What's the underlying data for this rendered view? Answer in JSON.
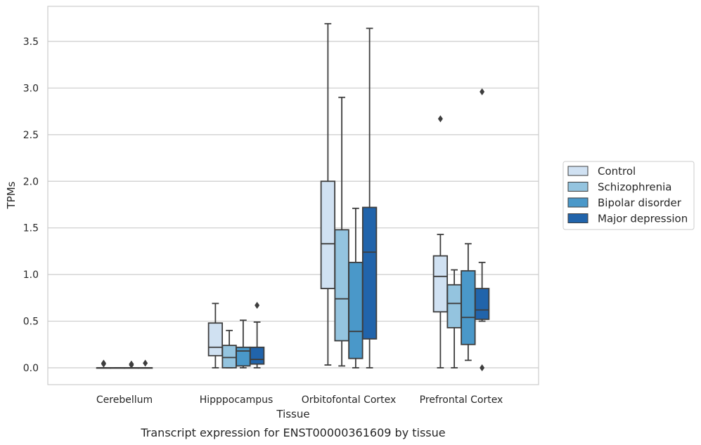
{
  "chart_data": {
    "type": "box",
    "xlabel": "Tissue",
    "ylabel": "TPMs",
    "caption": "Transcript expression for ENST00000361609 by tissue",
    "ylim": [
      -0.18,
      3.88
    ],
    "yticks": [
      "0.0",
      "0.5",
      "1.0",
      "1.5",
      "2.0",
      "2.5",
      "3.0",
      "3.5"
    ],
    "ytick_values": [
      0,
      0.5,
      1.0,
      1.5,
      2.0,
      2.5,
      3.0,
      3.5
    ],
    "grid": true,
    "legend_position": "right",
    "categories": [
      "Cerebellum",
      "Hipppocampus",
      "Orbitofontal Cortex",
      "Prefrontal Cortex"
    ],
    "series": [
      {
        "name": "Control",
        "color": "#d0e1f2",
        "boxes": [
          {
            "min": 0,
            "q1": 0,
            "median": 0,
            "q3": 0,
            "max": 0,
            "outliers": [
              0.05,
              0.04
            ]
          },
          {
            "min": 0,
            "q1": 0.13,
            "median": 0.22,
            "q3": 0.48,
            "max": 0.69,
            "outliers": []
          },
          {
            "min": 0.03,
            "q1": 0.85,
            "median": 1.33,
            "q3": 2.0,
            "max": 3.69,
            "outliers": []
          },
          {
            "min": 0,
            "q1": 0.6,
            "median": 0.98,
            "q3": 1.2,
            "max": 1.43,
            "outliers": [
              2.67
            ]
          }
        ]
      },
      {
        "name": "Schizophrenia",
        "color": "#94c4df",
        "boxes": [
          {
            "min": 0,
            "q1": 0,
            "median": 0,
            "q3": 0,
            "max": 0,
            "outliers": []
          },
          {
            "min": 0,
            "q1": 0,
            "median": 0.11,
            "q3": 0.24,
            "max": 0.4,
            "outliers": []
          },
          {
            "min": 0.02,
            "q1": 0.29,
            "median": 0.74,
            "q3": 1.48,
            "max": 2.9,
            "outliers": []
          },
          {
            "min": 0,
            "q1": 0.43,
            "median": 0.69,
            "q3": 0.89,
            "max": 1.05,
            "outliers": []
          }
        ]
      },
      {
        "name": "Bipolar disorder",
        "color": "#4a98c9",
        "boxes": [
          {
            "min": 0,
            "q1": 0,
            "median": 0,
            "q3": 0,
            "max": 0,
            "outliers": [
              0.04,
              0.03
            ]
          },
          {
            "min": 0,
            "q1": 0.02,
            "median": 0.18,
            "q3": 0.22,
            "max": 0.51,
            "outliers": []
          },
          {
            "min": 0,
            "q1": 0.1,
            "median": 0.39,
            "q3": 1.13,
            "max": 1.71,
            "outliers": []
          },
          {
            "min": 0.08,
            "q1": 0.25,
            "median": 0.54,
            "q3": 1.04,
            "max": 1.33,
            "outliers": []
          }
        ]
      },
      {
        "name": "Major depression",
        "color": "#2164ab",
        "boxes": [
          {
            "min": 0,
            "q1": 0,
            "median": 0,
            "q3": 0,
            "max": 0,
            "outliers": [
              0.05
            ]
          },
          {
            "min": 0,
            "q1": 0.04,
            "median": 0.09,
            "q3": 0.22,
            "max": 0.49,
            "outliers": [
              0.67
            ]
          },
          {
            "min": 0,
            "q1": 0.31,
            "median": 1.24,
            "q3": 1.72,
            "max": 3.64,
            "outliers": []
          },
          {
            "min": 0.5,
            "q1": 0.52,
            "median": 0.62,
            "q3": 0.85,
            "max": 1.13,
            "outliers": [
              2.96,
              0.0
            ]
          }
        ]
      }
    ]
  }
}
